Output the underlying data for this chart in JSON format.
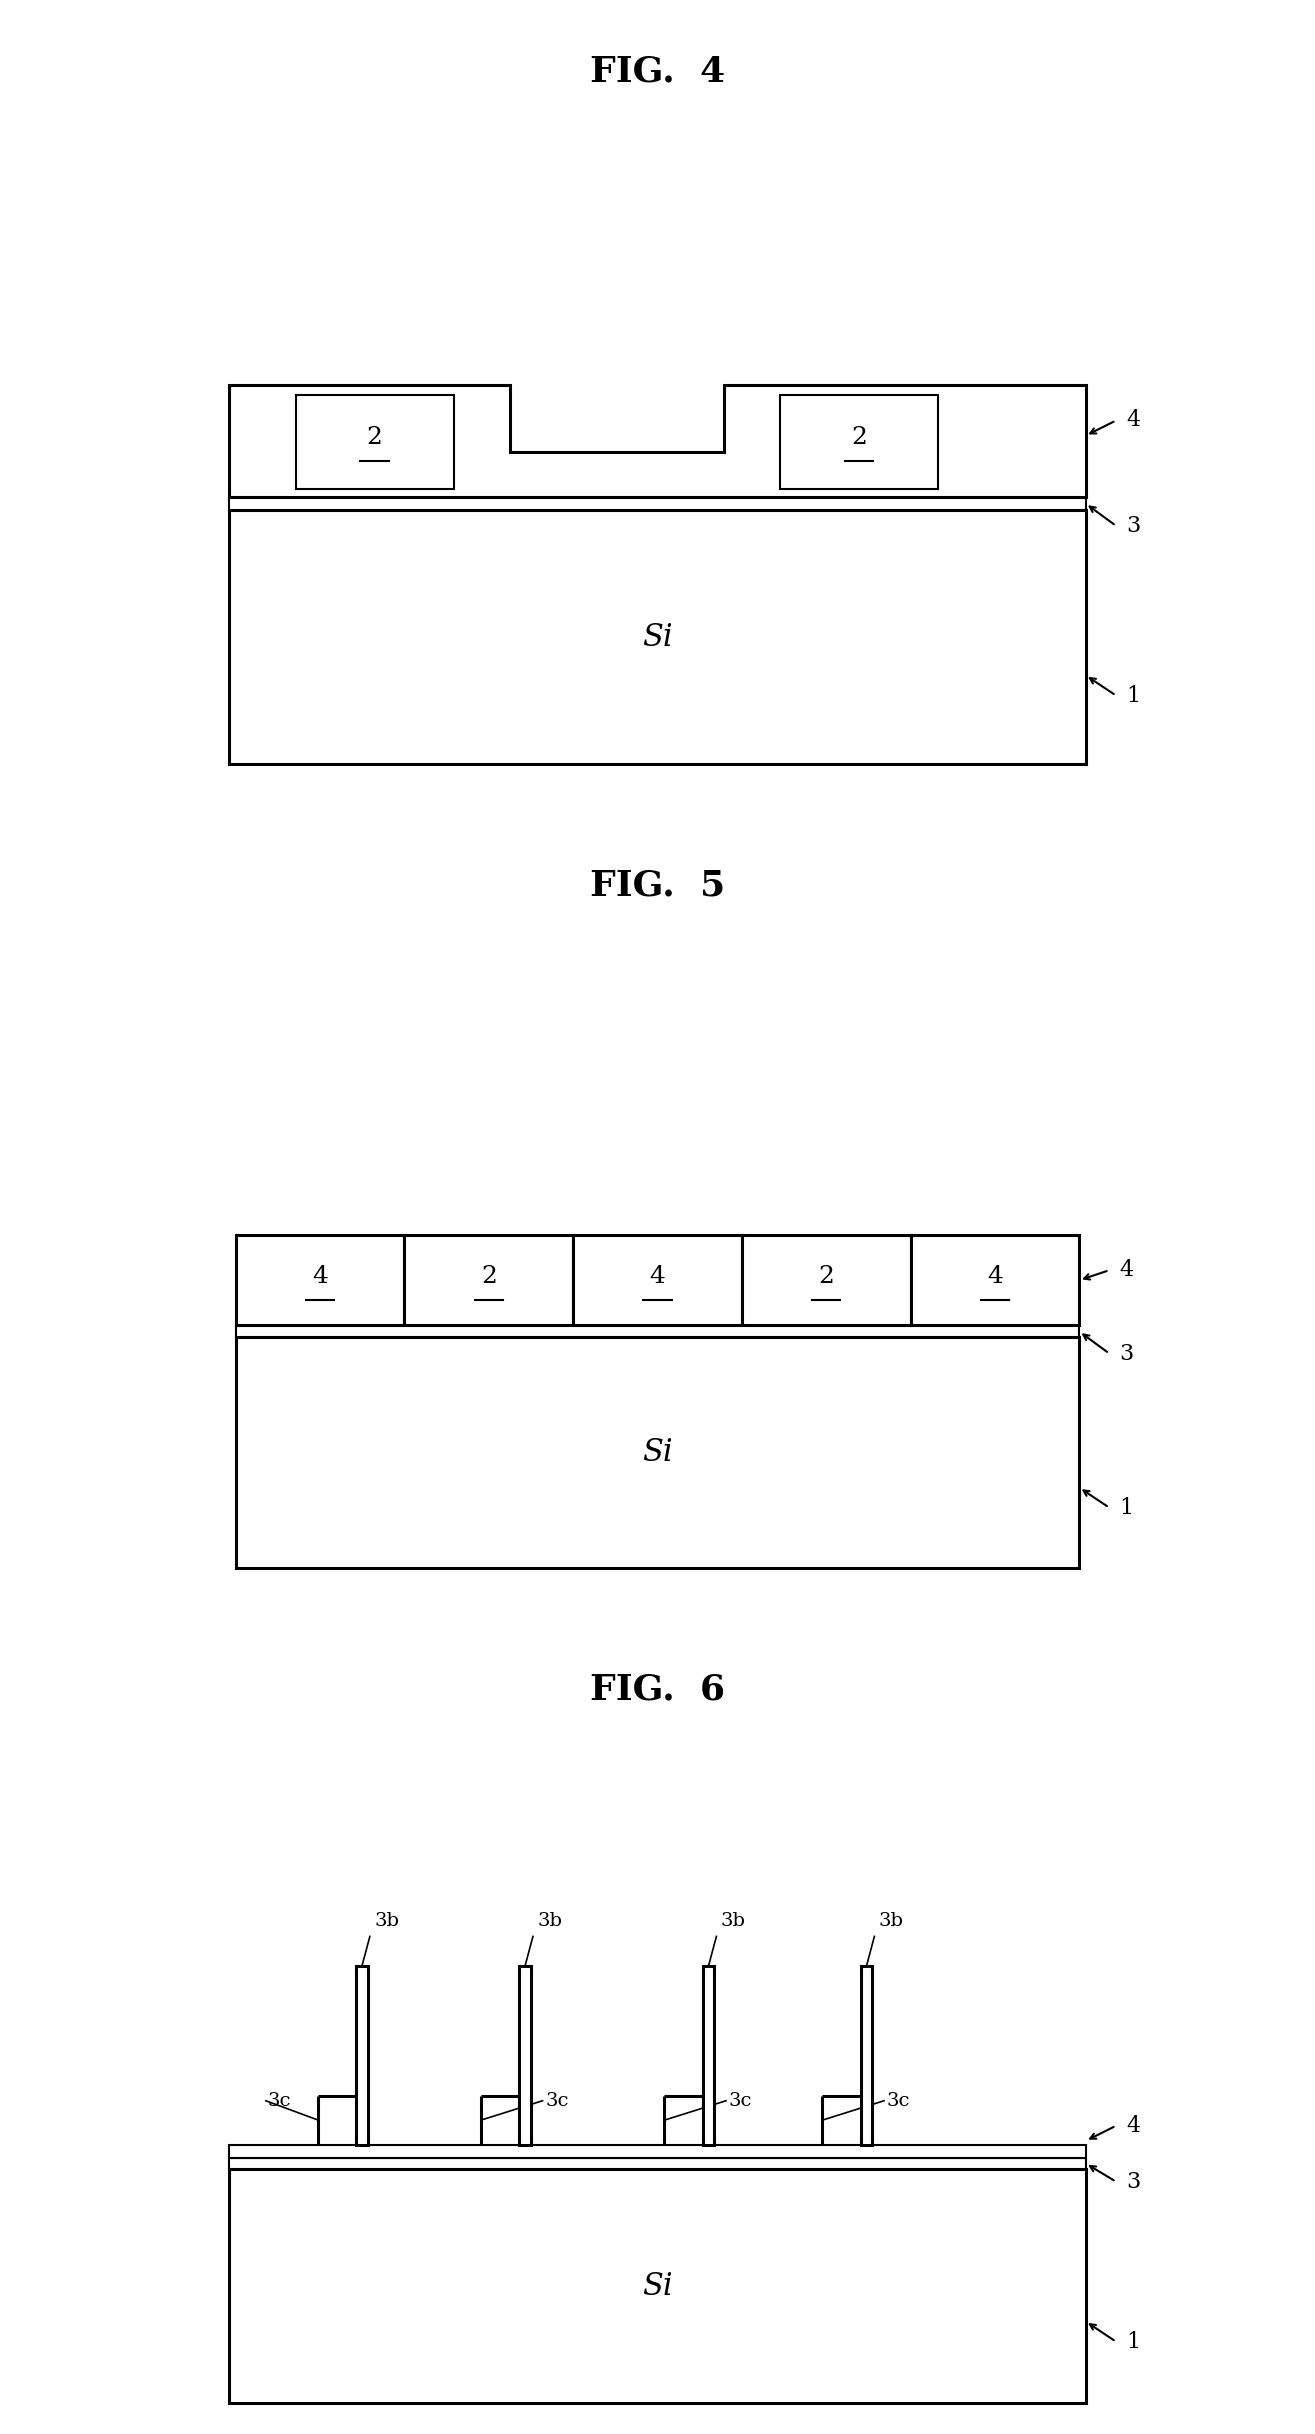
{
  "bg_color": "#ffffff",
  "line_color": "#000000",
  "fig4": {
    "title": "FIG.  4",
    "title_fontsize": 26,
    "si_label": "Si",
    "label_1": "1",
    "label_3": "3",
    "label_4": "4"
  },
  "fig5": {
    "title": "FIG.  5",
    "title_fontsize": 26,
    "si_label": "Si",
    "label_1": "1",
    "label_3": "3",
    "label_4": "4"
  },
  "fig6": {
    "title": "FIG.  6",
    "title_fontsize": 26,
    "si_label": "Si",
    "label_1": "1",
    "label_3": "3",
    "label_3b": "3b",
    "label_3c": "3c",
    "label_4": "4"
  }
}
